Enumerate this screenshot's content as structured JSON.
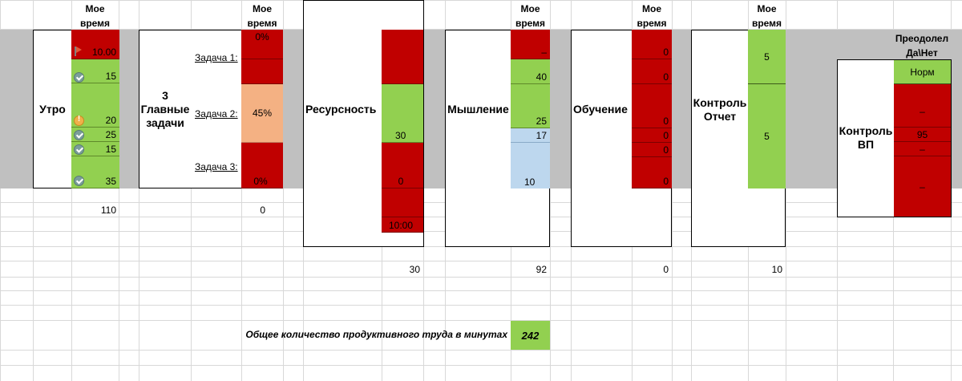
{
  "header": {
    "my_time": "Мое\nвремя",
    "overcame": "Преодолел\nДа\\Нет"
  },
  "sections": {
    "morning": {
      "title": "Утро",
      "header": "Мое время",
      "cells": [
        "10.00",
        "15",
        "20",
        "25",
        "15",
        "35"
      ],
      "total": "110",
      "icons": [
        "flag-icon",
        "check-icon",
        "warning-icon",
        "check-icon",
        "check-icon",
        "check-icon"
      ]
    },
    "tasks": {
      "title": "3 Главные задачи",
      "header": "Мое время",
      "task_labels": [
        "Задача 1:",
        "Задача 2:",
        "Задача 3:"
      ],
      "cells": [
        "0%",
        "45%",
        "0%"
      ],
      "total": "0"
    },
    "resource": {
      "title": "Ресурсность",
      "header": "Мое время",
      "cells": [
        "30",
        "0",
        "10:00"
      ],
      "total": "30"
    },
    "thinking": {
      "title": "Мышление",
      "header": "Мое время",
      "cells": [
        "–",
        "40",
        "25",
        "17",
        "10"
      ],
      "total": "92"
    },
    "learning": {
      "title": "Обучение",
      "header": "Мое время",
      "cells": [
        "0",
        "0",
        "0",
        "0",
        "0",
        "0"
      ],
      "total": "0"
    },
    "control": {
      "title": "Контроль Отчет",
      "header": "Мое время",
      "cells": [
        "5",
        "5"
      ],
      "total": "10"
    },
    "control_vp": {
      "title": "Контроль ВП",
      "header": "Преодолел Да\\Нет",
      "cells": [
        "Норм",
        "–",
        "95",
        "–",
        "–"
      ]
    }
  },
  "summary": {
    "label": "Общее количество продуктивного труда в минутах",
    "value": "242"
  },
  "colors": {
    "red": "#c00000",
    "green": "#92d050",
    "salmon": "#f4b183",
    "blue": "#bdd7ee",
    "band": "#c0c0c0"
  }
}
